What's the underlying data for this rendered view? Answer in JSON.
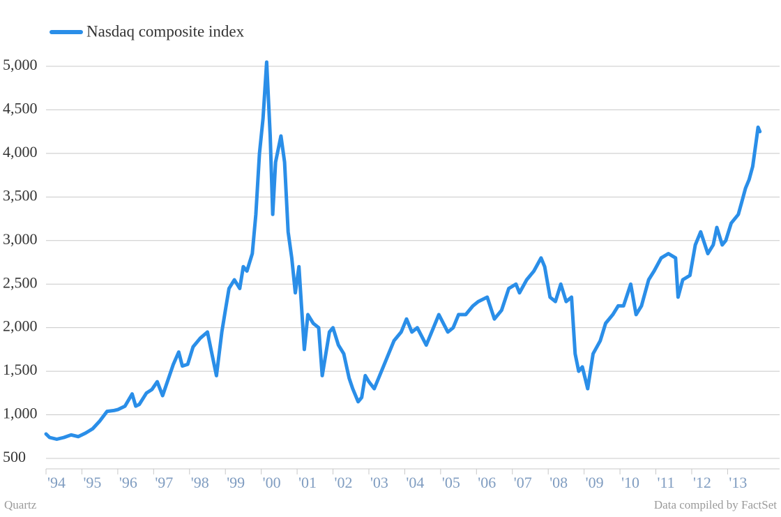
{
  "chart_data": {
    "type": "line",
    "legend": "top-left",
    "grid": true,
    "source_left": "Quartz",
    "source_right": "Data compiled by FactSet",
    "xlim": [
      1994,
      2014.45
    ],
    "xticks": [
      {
        "value": 1994,
        "label": "'94"
      },
      {
        "value": 1995,
        "label": "'95"
      },
      {
        "value": 1996,
        "label": "'96"
      },
      {
        "value": 1997,
        "label": "'97"
      },
      {
        "value": 1998,
        "label": "'98"
      },
      {
        "value": 1999,
        "label": "'99"
      },
      {
        "value": 2000,
        "label": "'00"
      },
      {
        "value": 2001,
        "label": "'01"
      },
      {
        "value": 2002,
        "label": "'02"
      },
      {
        "value": 2003,
        "label": "'03"
      },
      {
        "value": 2004,
        "label": "'04"
      },
      {
        "value": 2005,
        "label": "'05"
      },
      {
        "value": 2006,
        "label": "'06"
      },
      {
        "value": 2007,
        "label": "'07"
      },
      {
        "value": 2008,
        "label": "'08"
      },
      {
        "value": 2009,
        "label": "'09"
      },
      {
        "value": 2010,
        "label": "'10"
      },
      {
        "value": 2011,
        "label": "'11"
      },
      {
        "value": 2012,
        "label": "'12"
      },
      {
        "value": 2013,
        "label": "'13"
      }
    ],
    "ylim": [
      400,
      5300
    ],
    "yticks": [
      500,
      {
        "value": 1000,
        "label": "1,000"
      },
      {
        "value": 1500,
        "label": "1,500"
      },
      {
        "value": 2000,
        "label": "2,000"
      },
      {
        "value": 2500,
        "label": "2,500"
      },
      {
        "value": 3000,
        "label": "3,000"
      },
      {
        "value": 3500,
        "label": "3,500"
      },
      {
        "value": 4000,
        "label": "4,000"
      },
      {
        "value": 4500,
        "label": "4,500"
      },
      {
        "value": 5000,
        "label": "5,000"
      }
    ],
    "x": [
      1994.0,
      1994.1,
      1994.3,
      1994.5,
      1994.7,
      1994.9,
      1995.1,
      1995.3,
      1995.5,
      1995.7,
      1995.9,
      1996.0,
      1996.2,
      1996.4,
      1996.5,
      1996.6,
      1996.8,
      1996.95,
      1997.1,
      1997.25,
      1997.4,
      1997.55,
      1997.7,
      1997.8,
      1997.95,
      1998.1,
      1998.3,
      1998.5,
      1998.6,
      1998.75,
      1998.9,
      1999.0,
      1999.1,
      1999.25,
      1999.4,
      1999.5,
      1999.6,
      1999.75,
      1999.85,
      1999.95,
      2000.05,
      2000.15,
      2000.25,
      2000.32,
      2000.4,
      2000.55,
      2000.65,
      2000.75,
      2000.85,
      2000.95,
      2001.05,
      2001.2,
      2001.3,
      2001.45,
      2001.6,
      2001.7,
      2001.9,
      2002.0,
      2002.15,
      2002.3,
      2002.45,
      2002.55,
      2002.7,
      2002.8,
      2002.9,
      2003.0,
      2003.15,
      2003.3,
      2003.5,
      2003.7,
      2003.9,
      2004.05,
      2004.2,
      2004.35,
      2004.6,
      2004.8,
      2004.95,
      2005.2,
      2005.35,
      2005.5,
      2005.7,
      2005.9,
      2006.05,
      2006.3,
      2006.5,
      2006.7,
      2006.9,
      2007.1,
      2007.2,
      2007.4,
      2007.6,
      2007.8,
      2007.9,
      2008.05,
      2008.2,
      2008.35,
      2008.5,
      2008.65,
      2008.75,
      2008.85,
      2008.95,
      2009.1,
      2009.25,
      2009.45,
      2009.6,
      2009.8,
      2009.95,
      2010.1,
      2010.3,
      2010.45,
      2010.6,
      2010.8,
      2010.95,
      2011.15,
      2011.35,
      2011.55,
      2011.62,
      2011.75,
      2011.95,
      2012.1,
      2012.25,
      2012.45,
      2012.6,
      2012.7,
      2012.85,
      2012.95,
      2013.1,
      2013.3,
      2013.4,
      2013.5,
      2013.6,
      2013.7,
      2013.8,
      2013.85,
      2013.9
    ],
    "series": [
      {
        "name": "Nasdaq composite index",
        "color": "#2a8ee8",
        "values": [
          780,
          740,
          720,
          740,
          770,
          750,
          790,
          840,
          930,
          1040,
          1050,
          1060,
          1100,
          1240,
          1100,
          1120,
          1250,
          1290,
          1380,
          1220,
          1400,
          1580,
          1720,
          1560,
          1580,
          1780,
          1880,
          1950,
          1750,
          1450,
          1950,
          2200,
          2450,
          2550,
          2450,
          2700,
          2650,
          2850,
          3300,
          4000,
          4400,
          5048,
          4200,
          3300,
          3900,
          4200,
          3900,
          3100,
          2800,
          2400,
          2700,
          1750,
          2150,
          2050,
          2000,
          1450,
          1950,
          2000,
          1800,
          1700,
          1420,
          1300,
          1150,
          1200,
          1450,
          1380,
          1300,
          1450,
          1650,
          1850,
          1950,
          2100,
          1950,
          2000,
          1800,
          2000,
          2150,
          1950,
          2000,
          2150,
          2150,
          2250,
          2300,
          2350,
          2100,
          2200,
          2450,
          2500,
          2400,
          2550,
          2650,
          2800,
          2700,
          2350,
          2300,
          2500,
          2300,
          2350,
          1700,
          1500,
          1550,
          1300,
          1700,
          1850,
          2050,
          2150,
          2250,
          2250,
          2500,
          2150,
          2250,
          2550,
          2650,
          2800,
          2850,
          2800,
          2350,
          2550,
          2600,
          2950,
          3100,
          2850,
          2950,
          3150,
          2950,
          3000,
          3200,
          3300,
          3450,
          3600,
          3700,
          3850,
          4150,
          4300,
          4250
        ]
      }
    ]
  }
}
